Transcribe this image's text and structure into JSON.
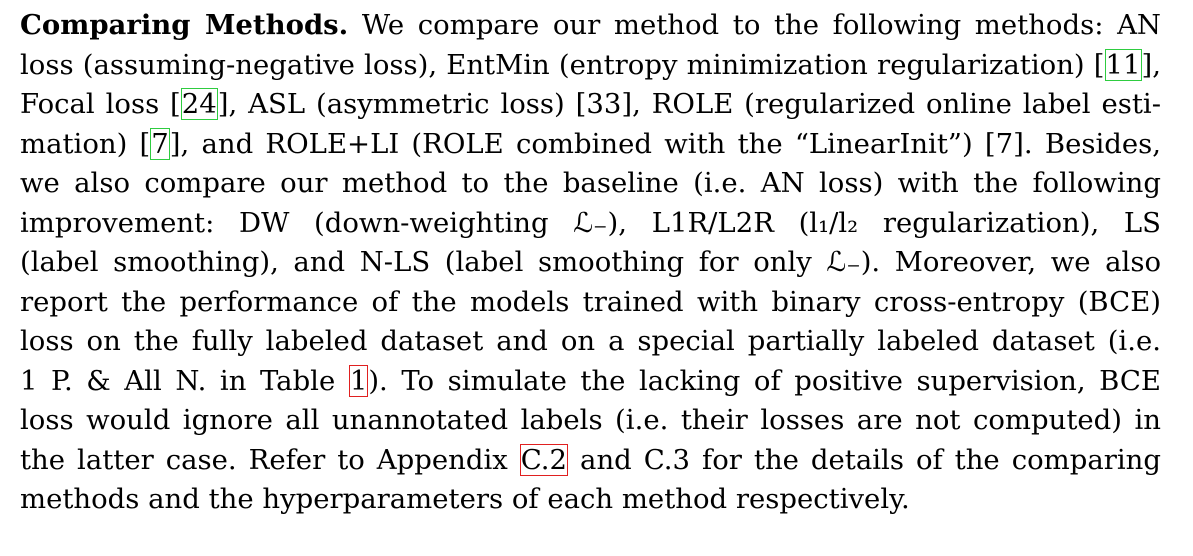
{
  "paragraph": {
    "lead": "Comparing Methods.",
    "lines": [
      {
        "pre": " We compare our method to the following methods: AN",
        "cite": "",
        "post": "",
        "cite_type": ""
      },
      {
        "pre": "loss (assuming-negative loss), EntMin (entropy minimization regularization) [",
        "cite": "11",
        "post": "],",
        "cite_type": "cite"
      },
      {
        "pre": "Focal loss [",
        "cite": "24",
        "post": "], ASL (asymmetric loss) [33], ROLE (regularized online label esti-",
        "cite_type": "cite"
      },
      {
        "pre": "mation) [",
        "cite": "7",
        "post": "], and ROLE+LI (ROLE combined with the “LinearInit”) [7]. Besides,",
        "cite_type": "cite"
      },
      {
        "pre": "we also compare our method to the baseline (i.e. AN loss) with the following",
        "cite": "",
        "post": "",
        "cite_type": ""
      },
      {
        "pre": "improvement: DW (down-weighting ℒ₋), L1R/L2R (l₁/l₂ regularization), LS",
        "cite": "",
        "post": "",
        "cite_type": ""
      },
      {
        "pre": "(label smoothing), and N-LS (label smoothing for only ℒ₋). Moreover, we also",
        "cite": "",
        "post": "",
        "cite_type": ""
      },
      {
        "pre": "report the performance of the models trained with binary cross-entropy (BCE)",
        "cite": "",
        "post": "",
        "cite_type": ""
      },
      {
        "pre": "loss on the fully labeled dataset and on a special partially labeled dataset (i.e.",
        "cite": "",
        "post": "",
        "cite_type": ""
      },
      {
        "pre": "1 P. & All N. in Table ",
        "cite": "1",
        "post": "). To simulate the lacking of positive supervision, BCE",
        "cite_type": "ref"
      },
      {
        "pre": "loss would ignore all unannotated labels (i.e. their losses are not computed) in",
        "cite": "",
        "post": "",
        "cite_type": ""
      },
      {
        "pre": "the latter case. Refer to Appendix ",
        "cite": "C.2",
        "post": " and C.3 for the details of the comparing",
        "cite_type": "ref"
      },
      {
        "pre": "methods and the hyperparameters of each method respectively.",
        "cite": "",
        "post": "",
        "cite_type": ""
      }
    ]
  }
}
